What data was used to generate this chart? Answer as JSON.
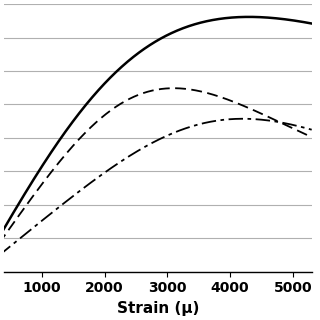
{
  "xlabel": "Strain (μ)",
  "xlim": [
    400,
    5300
  ],
  "ylim": [
    0,
    1.05
  ],
  "xticks": [
    1000,
    2000,
    3000,
    4000,
    5000
  ],
  "background_color": "#ffffff",
  "grid_color": "#b0b0b0",
  "grid_lw": 0.8,
  "curve1_color": "#000000",
  "curve1_lw": 1.8,
  "curve1_linestyle": "solid",
  "curve1_peak_strain": 4300,
  "curve1_peak_stress": 1.0,
  "curve1_n": 2.2,
  "curve2_color": "#000000",
  "curve2_lw": 1.3,
  "curve2_peak_strain": 3100,
  "curve2_peak_stress": 0.72,
  "curve2_n": 3.0,
  "curve3_color": "#000000",
  "curve3_lw": 1.3,
  "curve3_peak_strain": 4200,
  "curve3_peak_stress": 0.6,
  "curve3_n": 3.5,
  "xlabel_fontsize": 11,
  "xlabel_fontweight": "bold",
  "tick_fontsize": 10,
  "tick_fontweight": "bold"
}
